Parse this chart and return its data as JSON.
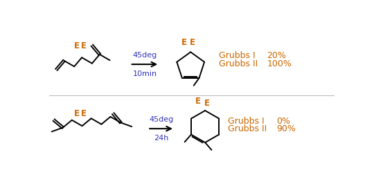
{
  "bg_color": "#ffffff",
  "line_color": "#000000",
  "label_color_E": "#cc6600",
  "label_color_grubbs": "#cc6600",
  "arrow_color": "#000000",
  "condition_color": "#3333bb",
  "fig_width": 5.4,
  "fig_height": 2.75,
  "reaction1": {
    "condition_line1": "45deg",
    "condition_line2": "10min",
    "grubbs1_label": "Grubbs I",
    "grubbs1_yield": "20%",
    "grubbs2_label": "Grubbs II",
    "grubbs2_yield": "100%"
  },
  "reaction2": {
    "condition_line1": "45deg",
    "condition_line2": "24h",
    "grubbs1_label": "Grubbs I",
    "grubbs1_yield": "0%",
    "grubbs2_label": "Grubbs II",
    "grubbs2_yield": "90%"
  }
}
